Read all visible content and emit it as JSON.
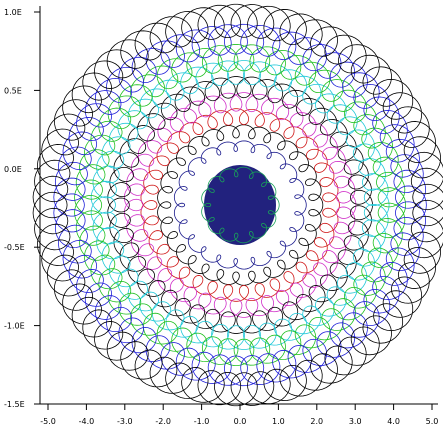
{
  "chart_data": {
    "type": "line",
    "title": "",
    "xlabel": "",
    "ylabel": "",
    "x_ticks": [
      "-5.0",
      "-4.0",
      "-3.0",
      "-2.0",
      "-1.0",
      "0.0",
      "1.0",
      "2.0",
      "3.0",
      "4.0",
      "5.0"
    ],
    "y_ticks": [
      "1.0E",
      "0.5E",
      "0.0E",
      "-0.5E",
      "-1.0E",
      "-1.5E"
    ],
    "grid": false,
    "series": [
      {
        "values": {
          "radius": 0.9,
          "loops": 14
        },
        "color": "#19a05a"
      },
      {
        "values": {
          "radius": 1.6,
          "loops": 22
        },
        "color": "#1a1a8c"
      },
      {
        "values": {
          "radius": 2.0,
          "loops": 30
        },
        "color": "#000000"
      },
      {
        "values": {
          "radius": 2.4,
          "loops": 36
        },
        "color": "#d01818"
      },
      {
        "values": {
          "radius": 2.8,
          "loops": 42
        },
        "color": "#d030c8"
      },
      {
        "values": {
          "radius": 3.2,
          "loops": 48
        },
        "color": "#000000"
      },
      {
        "values": {
          "radius": 3.6,
          "loops": 54
        },
        "color": "#20c8d8"
      },
      {
        "values": {
          "radius": 4.0,
          "loops": 60
        },
        "color": "#20c020"
      },
      {
        "values": {
          "radius": 4.5,
          "loops": 66
        },
        "color": "#2020d8"
      },
      {
        "values": {
          "radius": 5.0,
          "loops": 72
        },
        "color": "#000000"
      }
    ],
    "xlim": [
      -5.5,
      5.5
    ],
    "ylim": [
      -1.5,
      1.1
    ]
  }
}
